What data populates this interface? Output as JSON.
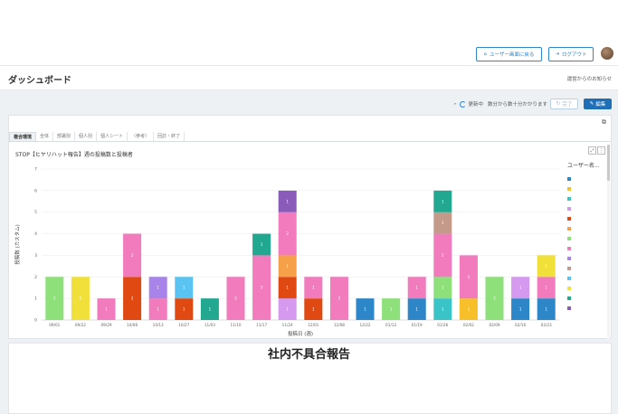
{
  "header": {
    "user_view_button": "ユーザー画面に戻る",
    "logout_button": "ログアウト"
  },
  "page": {
    "title": "ダッシュボード",
    "notice_link": "運営からのお知らせ"
  },
  "toolbar": {
    "status_label": "更新中",
    "status_note": "数分から数十分かかります",
    "complete_button": "完了",
    "edit_button": "編集"
  },
  "tabs": [
    {
      "label": "複合環境",
      "active": true
    },
    {
      "label": "全体",
      "active": false
    },
    {
      "label": "部署別",
      "active": false
    },
    {
      "label": "個人別",
      "active": false
    },
    {
      "label": "個人シート",
      "active": false
    },
    {
      "label": "（参考）",
      "active": false
    },
    {
      "label": "回診・終了",
      "active": false
    }
  ],
  "chart_title": "STOP【ヒヤリハット報告】週の投稿数と投稿者",
  "legend_title": "ユーザー名...",
  "chart_data": {
    "type": "bar",
    "stacked": true,
    "ylabel": "投稿数 (カスタム)",
    "xlabel": "投稿日 (週)",
    "ylim": [
      0,
      7
    ],
    "yticks": [
      0,
      1,
      2,
      3,
      4,
      5,
      6,
      7
    ],
    "categories": [
      "09/01",
      "09/22",
      "09/29",
      "10/06",
      "10/13",
      "10/27",
      "11/03",
      "11/10",
      "11/17",
      "11/24",
      "12/01",
      "12/08",
      "12/22",
      "01/12",
      "01/19",
      "01/26",
      "02/02",
      "02/09",
      "02/16",
      "02/23"
    ],
    "stacks": [
      [
        {
          "c": "#8ee07a",
          "v": 2,
          "l": "2"
        }
      ],
      [
        {
          "c": "#f2e03a",
          "v": 2,
          "l": "2"
        }
      ],
      [
        {
          "c": "#f27bbd",
          "v": 1,
          "l": "1"
        }
      ],
      [
        {
          "c": "#e04a12",
          "v": 2,
          "l": "2"
        },
        {
          "c": "#f27bbd",
          "v": 2,
          "l": "2"
        }
      ],
      [
        {
          "c": "#f27bbd",
          "v": 1,
          "l": "1"
        },
        {
          "c": "#a883ea",
          "v": 1,
          "l": "1"
        }
      ],
      [
        {
          "c": "#e04a12",
          "v": 1,
          "l": "1"
        },
        {
          "c": "#5bc3f2",
          "v": 1,
          "l": "1"
        }
      ],
      [
        {
          "c": "#22a890",
          "v": 1,
          "l": "1"
        }
      ],
      [
        {
          "c": "#f27bbd",
          "v": 2,
          "l": "2"
        }
      ],
      [
        {
          "c": "#f27bbd",
          "v": 3,
          "l": "3"
        },
        {
          "c": "#22a890",
          "v": 1,
          "l": "1"
        }
      ],
      [
        {
          "c": "#d59af0",
          "v": 1,
          "l": "1"
        },
        {
          "c": "#e04a12",
          "v": 1,
          "l": "1"
        },
        {
          "c": "#f7a04a",
          "v": 1,
          "l": "1"
        },
        {
          "c": "#f27bbd",
          "v": 2,
          "l": "2"
        },
        {
          "c": "#8a5bb8",
          "v": 1,
          "l": "1"
        }
      ],
      [
        {
          "c": "#e04a12",
          "v": 1,
          "l": "1"
        },
        {
          "c": "#f27bbd",
          "v": 1,
          "l": "1"
        }
      ],
      [
        {
          "c": "#f27bbd",
          "v": 2,
          "l": "2"
        }
      ],
      [
        {
          "c": "#2d86c8",
          "v": 1,
          "l": "1"
        }
      ],
      [
        {
          "c": "#8ee07a",
          "v": 1,
          "l": "1"
        }
      ],
      [
        {
          "c": "#2d86c8",
          "v": 1,
          "l": "1"
        },
        {
          "c": "#f27bbd",
          "v": 1,
          "l": "1"
        }
      ],
      [
        {
          "c": "#3bc4c8",
          "v": 1,
          "l": "1"
        },
        {
          "c": "#8ee07a",
          "v": 1,
          "l": "1"
        },
        {
          "c": "#f27bbd",
          "v": 2,
          "l": "2"
        },
        {
          "c": "#c49a8a",
          "v": 1,
          "l": "1"
        },
        {
          "c": "#22a890",
          "v": 1,
          "l": "1"
        }
      ],
      [
        {
          "c": "#f7c02a",
          "v": 1,
          "l": "1"
        },
        {
          "c": "#f27bbd",
          "v": 2,
          "l": "2"
        }
      ],
      [
        {
          "c": "#8ee07a",
          "v": 2,
          "l": "2"
        }
      ],
      [
        {
          "c": "#2d86c8",
          "v": 1,
          "l": "1"
        },
        {
          "c": "#d59af0",
          "v": 1,
          "l": "1"
        }
      ],
      [
        {
          "c": "#2d86c8",
          "v": 1,
          "l": "1"
        },
        {
          "c": "#f27bbd",
          "v": 1,
          "l": "1"
        },
        {
          "c": "#f2e03a",
          "v": 1,
          "l": "1"
        }
      ]
    ],
    "legend_colors": [
      "#2d86c8",
      "#f7c02a",
      "#3bc4c8",
      "#d59af0",
      "#e04a12",
      "#f7a04a",
      "#8ee07a",
      "#f27bbd",
      "#a883ea",
      "#c49a8a",
      "#5bc3f2",
      "#f2e03a",
      "#22a890",
      "#8a5bb8"
    ]
  },
  "report": {
    "title": "社内不具合報告"
  }
}
